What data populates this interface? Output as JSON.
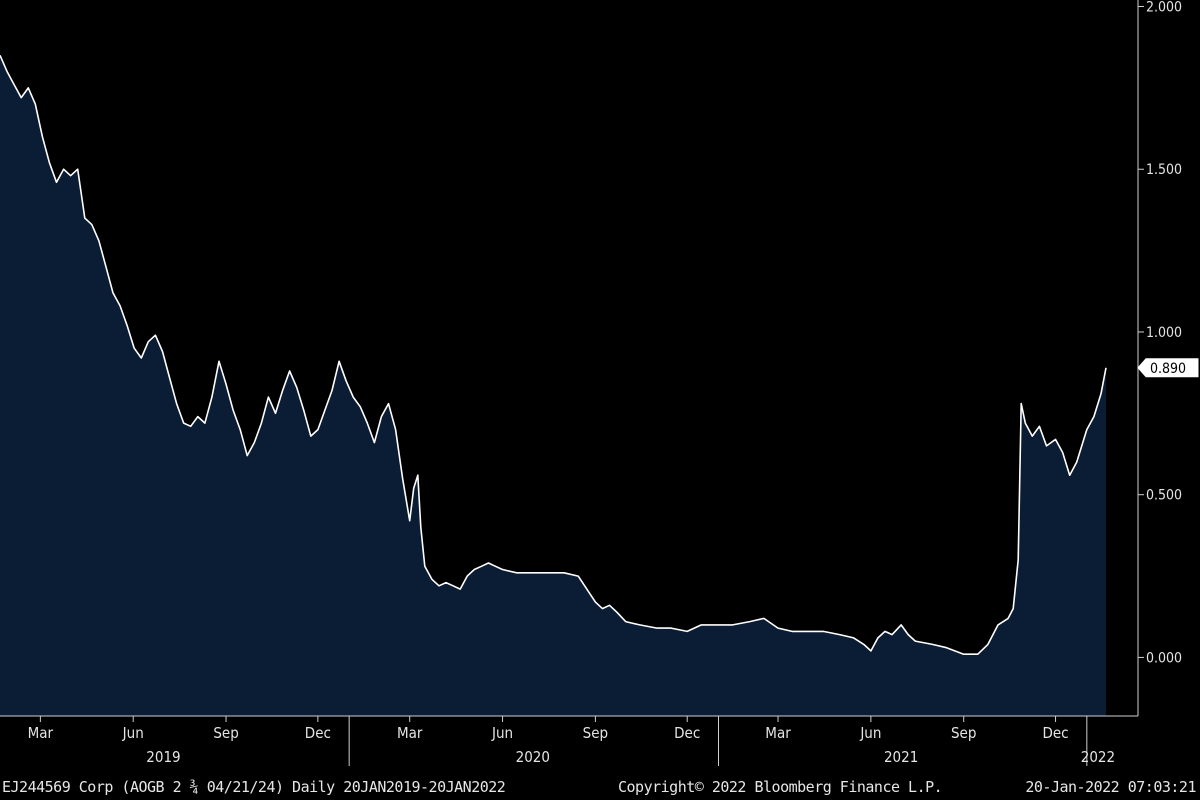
{
  "chart_data": {
    "type": "area",
    "title": "",
    "xlabel": "",
    "ylabel": "",
    "x_start": "2019-01-20",
    "x_end": "2022-01-20",
    "ylim": [
      -0.18,
      2.02
    ],
    "yticks": [
      0.0,
      0.5,
      1.0,
      1.5,
      2.0
    ],
    "ytick_labels": [
      "0.000",
      "0.500",
      "1.000",
      "1.500",
      "2.000"
    ],
    "xtick_labels": [
      {
        "date": "2019-03-01",
        "label": "Mar"
      },
      {
        "date": "2019-06-01",
        "label": "Jun"
      },
      {
        "date": "2019-09-01",
        "label": "Sep"
      },
      {
        "date": "2019-12-01",
        "label": "Dec"
      },
      {
        "date": "2020-03-01",
        "label": "Mar"
      },
      {
        "date": "2020-06-01",
        "label": "Jun"
      },
      {
        "date": "2020-09-01",
        "label": "Sep"
      },
      {
        "date": "2020-12-01",
        "label": "Dec"
      },
      {
        "date": "2021-03-01",
        "label": "Mar"
      },
      {
        "date": "2021-06-01",
        "label": "Jun"
      },
      {
        "date": "2021-09-01",
        "label": "Sep"
      },
      {
        "date": "2021-12-01",
        "label": "Dec"
      }
    ],
    "year_labels": [
      {
        "date": "2019-07-01",
        "label": "2019"
      },
      {
        "date": "2020-07-01",
        "label": "2020"
      },
      {
        "date": "2021-07-01",
        "label": "2021"
      },
      {
        "date": "2022-01-12",
        "label": "2022"
      }
    ],
    "year_dividers": [
      "2020-01-01",
      "2021-01-01",
      "2022-01-01"
    ],
    "last_value": 0.89,
    "last_value_label": "0.890",
    "colors": {
      "line": "#ffffff",
      "fill": "#0b1c35",
      "background": "#000000",
      "axis": "#cfcfcf"
    },
    "series": [
      {
        "points": [
          [
            "2019-01-20",
            1.85
          ],
          [
            "2019-01-27",
            1.8
          ],
          [
            "2019-02-03",
            1.76
          ],
          [
            "2019-02-10",
            1.72
          ],
          [
            "2019-02-17",
            1.75
          ],
          [
            "2019-02-24",
            1.7
          ],
          [
            "2019-03-03",
            1.6
          ],
          [
            "2019-03-10",
            1.52
          ],
          [
            "2019-03-17",
            1.46
          ],
          [
            "2019-03-24",
            1.5
          ],
          [
            "2019-03-31",
            1.48
          ],
          [
            "2019-04-07",
            1.5
          ],
          [
            "2019-04-14",
            1.35
          ],
          [
            "2019-04-21",
            1.33
          ],
          [
            "2019-04-28",
            1.28
          ],
          [
            "2019-05-05",
            1.2
          ],
          [
            "2019-05-12",
            1.12
          ],
          [
            "2019-05-19",
            1.08
          ],
          [
            "2019-05-26",
            1.02
          ],
          [
            "2019-06-02",
            0.95
          ],
          [
            "2019-06-09",
            0.92
          ],
          [
            "2019-06-16",
            0.97
          ],
          [
            "2019-06-23",
            0.99
          ],
          [
            "2019-06-30",
            0.94
          ],
          [
            "2019-07-07",
            0.86
          ],
          [
            "2019-07-14",
            0.78
          ],
          [
            "2019-07-21",
            0.72
          ],
          [
            "2019-07-28",
            0.71
          ],
          [
            "2019-08-04",
            0.74
          ],
          [
            "2019-08-11",
            0.72
          ],
          [
            "2019-08-18",
            0.8
          ],
          [
            "2019-08-25",
            0.91
          ],
          [
            "2019-09-01",
            0.84
          ],
          [
            "2019-09-08",
            0.76
          ],
          [
            "2019-09-15",
            0.7
          ],
          [
            "2019-09-22",
            0.62
          ],
          [
            "2019-09-29",
            0.66
          ],
          [
            "2019-10-06",
            0.72
          ],
          [
            "2019-10-13",
            0.8
          ],
          [
            "2019-10-20",
            0.75
          ],
          [
            "2019-10-27",
            0.82
          ],
          [
            "2019-11-03",
            0.88
          ],
          [
            "2019-11-10",
            0.83
          ],
          [
            "2019-11-17",
            0.76
          ],
          [
            "2019-11-24",
            0.68
          ],
          [
            "2019-12-01",
            0.7
          ],
          [
            "2019-12-08",
            0.76
          ],
          [
            "2019-12-15",
            0.82
          ],
          [
            "2019-12-22",
            0.91
          ],
          [
            "2019-12-29",
            0.85
          ],
          [
            "2020-01-05",
            0.8
          ],
          [
            "2020-01-12",
            0.77
          ],
          [
            "2020-01-19",
            0.72
          ],
          [
            "2020-01-26",
            0.66
          ],
          [
            "2020-02-02",
            0.74
          ],
          [
            "2020-02-09",
            0.78
          ],
          [
            "2020-02-16",
            0.7
          ],
          [
            "2020-02-23",
            0.55
          ],
          [
            "2020-03-01",
            0.42
          ],
          [
            "2020-03-05",
            0.52
          ],
          [
            "2020-03-09",
            0.56
          ],
          [
            "2020-03-12",
            0.4
          ],
          [
            "2020-03-16",
            0.28
          ],
          [
            "2020-03-23",
            0.24
          ],
          [
            "2020-03-30",
            0.22
          ],
          [
            "2020-04-06",
            0.23
          ],
          [
            "2020-04-13",
            0.22
          ],
          [
            "2020-04-20",
            0.21
          ],
          [
            "2020-04-27",
            0.25
          ],
          [
            "2020-05-04",
            0.27
          ],
          [
            "2020-05-11",
            0.28
          ],
          [
            "2020-05-18",
            0.29
          ],
          [
            "2020-05-25",
            0.28
          ],
          [
            "2020-06-01",
            0.27
          ],
          [
            "2020-06-15",
            0.26
          ],
          [
            "2020-07-01",
            0.26
          ],
          [
            "2020-07-15",
            0.26
          ],
          [
            "2020-08-01",
            0.26
          ],
          [
            "2020-08-15",
            0.25
          ],
          [
            "2020-09-01",
            0.17
          ],
          [
            "2020-09-08",
            0.15
          ],
          [
            "2020-09-15",
            0.16
          ],
          [
            "2020-09-22",
            0.14
          ],
          [
            "2020-10-01",
            0.11
          ],
          [
            "2020-10-15",
            0.1
          ],
          [
            "2020-11-01",
            0.09
          ],
          [
            "2020-11-15",
            0.09
          ],
          [
            "2020-12-01",
            0.08
          ],
          [
            "2020-12-15",
            0.1
          ],
          [
            "2021-01-01",
            0.1
          ],
          [
            "2021-01-15",
            0.1
          ],
          [
            "2021-02-01",
            0.11
          ],
          [
            "2021-02-15",
            0.12
          ],
          [
            "2021-03-01",
            0.09
          ],
          [
            "2021-03-15",
            0.08
          ],
          [
            "2021-04-01",
            0.08
          ],
          [
            "2021-04-15",
            0.08
          ],
          [
            "2021-05-01",
            0.07
          ],
          [
            "2021-05-15",
            0.06
          ],
          [
            "2021-05-25",
            0.04
          ],
          [
            "2021-06-01",
            0.02
          ],
          [
            "2021-06-08",
            0.06
          ],
          [
            "2021-06-15",
            0.08
          ],
          [
            "2021-06-22",
            0.07
          ],
          [
            "2021-07-01",
            0.1
          ],
          [
            "2021-07-08",
            0.07
          ],
          [
            "2021-07-15",
            0.05
          ],
          [
            "2021-08-01",
            0.04
          ],
          [
            "2021-08-15",
            0.03
          ],
          [
            "2021-09-01",
            0.01
          ],
          [
            "2021-09-15",
            0.01
          ],
          [
            "2021-09-25",
            0.04
          ],
          [
            "2021-10-05",
            0.1
          ],
          [
            "2021-10-15",
            0.12
          ],
          [
            "2021-10-20",
            0.15
          ],
          [
            "2021-10-25",
            0.3
          ],
          [
            "2021-10-28",
            0.78
          ],
          [
            "2021-11-01",
            0.72
          ],
          [
            "2021-11-08",
            0.68
          ],
          [
            "2021-11-15",
            0.71
          ],
          [
            "2021-11-22",
            0.65
          ],
          [
            "2021-12-01",
            0.67
          ],
          [
            "2021-12-08",
            0.63
          ],
          [
            "2021-12-15",
            0.56
          ],
          [
            "2021-12-22",
            0.6
          ],
          [
            "2022-01-01",
            0.7
          ],
          [
            "2022-01-08",
            0.74
          ],
          [
            "2022-01-15",
            0.81
          ],
          [
            "2022-01-20",
            0.89
          ]
        ]
      }
    ]
  },
  "footer": {
    "left": "EJ244569 Corp (AOGB 2 ¾ 04/21/24)  Daily 20JAN2019-20JAN2022",
    "middle": "Copyright© 2022 Bloomberg Finance L.P.",
    "right": "20-Jan-2022 07:03:21"
  }
}
